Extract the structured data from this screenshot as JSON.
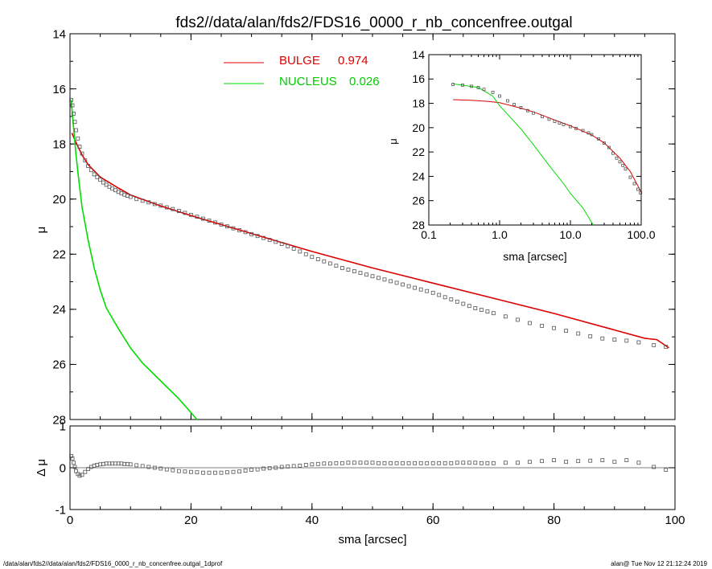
{
  "title": "fds2//data/alan/fds2/FDS16_0000_r_nb_concenfree.outgal",
  "footer_left": "/data/alan/fds2//data/alan/fds2/FDS16_0000_r_nb_concenfree.outgal_1dprof",
  "footer_right": "alan@  Tue Nov 12 21:12:24 2019",
  "colors": {
    "bulge": "#dd0000",
    "nucleus": "#00dd00",
    "data": "#555555",
    "axis": "#000000"
  },
  "chart_data": [
    {
      "id": "main",
      "type": "scatter",
      "xlabel": "",
      "ylabel": "μ",
      "xlim": [
        0,
        100
      ],
      "ylim": [
        28,
        14
      ],
      "xticks": [
        0,
        20,
        40,
        60,
        80,
        100
      ],
      "xticklabels": [
        "",
        "",
        "",
        "",
        "",
        ""
      ],
      "yticks": [
        14,
        16,
        18,
        20,
        22,
        24,
        26,
        28
      ],
      "yticklabels": [
        "14",
        "16",
        "18",
        "20",
        "22",
        "24",
        "26",
        "28"
      ],
      "legend": "top-center",
      "series": [
        {
          "name": "BULGE",
          "legend_value": "0.974",
          "kind": "line",
          "x": [
            0.3,
            1,
            2,
            3,
            5,
            8,
            10,
            15,
            20,
            30,
            40,
            50,
            60,
            70,
            80,
            90,
            95,
            97,
            99
          ],
          "y": [
            17.6,
            17.95,
            18.4,
            18.75,
            19.2,
            19.6,
            19.85,
            20.25,
            20.6,
            21.25,
            21.9,
            22.5,
            23.05,
            23.6,
            24.15,
            24.75,
            25.05,
            25.1,
            25.4
          ]
        },
        {
          "name": "NUCLEUS",
          "legend_value": "0.026",
          "kind": "line",
          "x": [
            0.2,
            0.5,
            1,
            1.5,
            2,
            3,
            4,
            5,
            6,
            8,
            10,
            12,
            15,
            18,
            21
          ],
          "y": [
            16.4,
            17.2,
            18.4,
            19.4,
            20.3,
            21.5,
            22.5,
            23.3,
            23.95,
            24.7,
            25.4,
            25.95,
            26.6,
            27.25,
            28.0
          ]
        },
        {
          "name": "",
          "kind": "markers",
          "x": [
            0.2,
            0.4,
            0.6,
            0.8,
            1,
            1.3,
            1.6,
            2,
            2.5,
            3,
            3.5,
            4,
            4.5,
            5,
            5.5,
            6,
            6.5,
            7,
            7.5,
            8,
            8.5,
            9,
            9.5,
            10,
            11,
            12,
            13,
            14,
            15,
            16,
            17,
            18,
            19,
            20,
            21,
            22,
            23,
            24,
            25,
            26,
            27,
            28,
            29,
            30,
            31,
            32,
            33,
            34,
            35,
            36,
            37,
            38,
            39,
            40,
            41,
            42,
            43,
            44,
            45,
            46,
            47,
            48,
            49,
            50,
            51,
            52,
            53,
            54,
            55,
            56,
            57,
            58,
            59,
            60,
            61,
            62,
            63,
            64,
            65,
            66,
            67,
            68,
            69,
            70,
            72,
            74,
            76,
            78,
            80,
            82,
            84,
            86,
            88,
            90,
            92,
            94,
            96.5,
            98.5
          ],
          "y": [
            16.4,
            16.6,
            16.9,
            17.2,
            17.5,
            17.8,
            18.1,
            18.35,
            18.6,
            18.8,
            18.95,
            19.1,
            19.2,
            19.3,
            19.4,
            19.48,
            19.55,
            19.62,
            19.68,
            19.74,
            19.79,
            19.84,
            19.88,
            19.92,
            20.0,
            20.06,
            20.12,
            20.18,
            20.24,
            20.3,
            20.36,
            20.43,
            20.5,
            20.57,
            20.64,
            20.71,
            20.78,
            20.85,
            20.92,
            20.99,
            21.06,
            21.13,
            21.2,
            21.27,
            21.34,
            21.41,
            21.48,
            21.55,
            21.63,
            21.71,
            21.8,
            21.9,
            22.0,
            22.1,
            22.18,
            22.26,
            22.34,
            22.42,
            22.5,
            22.56,
            22.62,
            22.68,
            22.74,
            22.8,
            22.86,
            22.92,
            22.98,
            23.04,
            23.1,
            23.16,
            23.22,
            23.28,
            23.34,
            23.4,
            23.48,
            23.56,
            23.64,
            23.72,
            23.8,
            23.88,
            23.96,
            24.02,
            24.08,
            24.14,
            24.26,
            24.38,
            24.5,
            24.6,
            24.68,
            24.78,
            24.88,
            24.98,
            25.06,
            25.1,
            25.14,
            25.2,
            25.3,
            25.36
          ]
        }
      ]
    },
    {
      "id": "inset",
      "type": "scatter",
      "xscale": "log",
      "xlabel": "sma [arcsec]",
      "ylabel": "μ",
      "xlim": [
        0.1,
        100
      ],
      "ylim": [
        28,
        14
      ],
      "xticks": [
        0.1,
        1,
        10,
        100
      ],
      "xticklabels": [
        "0.1",
        "1.0",
        "10.0",
        "100.0"
      ],
      "yticks": [
        14,
        16,
        18,
        20,
        22,
        24,
        26,
        28
      ],
      "yticklabels": [
        "14",
        "16",
        "18",
        "20",
        "22",
        "24",
        "26",
        "28"
      ],
      "series": [
        {
          "name": "BULGE",
          "kind": "line",
          "x": [
            0.22,
            0.4,
            0.7,
            1,
            2,
            3,
            5,
            10,
            20,
            30,
            50,
            70,
            100
          ],
          "y": [
            17.7,
            17.75,
            17.85,
            17.95,
            18.4,
            18.7,
            19.2,
            19.85,
            20.6,
            21.25,
            22.5,
            23.6,
            25.3
          ]
        },
        {
          "name": "NUCLEUS",
          "kind": "line",
          "x": [
            0.22,
            0.5,
            0.8,
            1,
            1.5,
            2,
            3,
            5,
            8,
            10,
            15,
            21
          ],
          "y": [
            16.4,
            16.7,
            17.4,
            18.2,
            19.3,
            20.1,
            21.4,
            23.1,
            24.6,
            25.4,
            26.6,
            28.0
          ]
        },
        {
          "name": "",
          "kind": "markers",
          "x": [
            0.22,
            0.3,
            0.4,
            0.5,
            0.6,
            0.8,
            1,
            1.3,
            1.6,
            2,
            2.5,
            3,
            4,
            5,
            6,
            7,
            8,
            10,
            12,
            15,
            18,
            20,
            25,
            30,
            35,
            40,
            45,
            50,
            55,
            60,
            70,
            80,
            90,
            98
          ],
          "y": [
            16.45,
            16.5,
            16.6,
            16.7,
            16.85,
            17.1,
            17.4,
            17.8,
            18.1,
            18.35,
            18.6,
            18.8,
            19.1,
            19.3,
            19.48,
            19.62,
            19.74,
            19.92,
            20.06,
            20.24,
            20.43,
            20.57,
            20.92,
            21.27,
            21.63,
            22.1,
            22.5,
            22.8,
            23.1,
            23.4,
            24.08,
            24.6,
            25.06,
            25.36
          ]
        }
      ]
    },
    {
      "id": "residual",
      "type": "scatter",
      "xlabel": "sma [arcsec]",
      "ylabel": "Δ μ",
      "xlim": [
        0,
        100
      ],
      "ylim": [
        -1,
        1
      ],
      "xticks": [
        0,
        20,
        40,
        60,
        80,
        100
      ],
      "xticklabels": [
        "0",
        "20",
        "40",
        "60",
        "80",
        "100"
      ],
      "yticks": [
        -1,
        0,
        1
      ],
      "yticklabels": [
        "-1",
        "0",
        "1"
      ],
      "series": [
        {
          "name": "",
          "kind": "markers",
          "x": [
            0.2,
            0.4,
            0.6,
            0.8,
            1,
            1.3,
            1.6,
            2,
            2.5,
            3,
            3.5,
            4,
            4.5,
            5,
            5.5,
            6,
            6.5,
            7,
            7.5,
            8,
            8.5,
            9,
            9.5,
            10,
            11,
            12,
            13,
            14,
            15,
            16,
            17,
            18,
            19,
            20,
            21,
            22,
            23,
            24,
            25,
            26,
            27,
            28,
            29,
            30,
            31,
            32,
            33,
            34,
            35,
            36,
            37,
            38,
            39,
            40,
            41,
            42,
            43,
            44,
            45,
            46,
            47,
            48,
            49,
            50,
            51,
            52,
            53,
            54,
            55,
            56,
            57,
            58,
            59,
            60,
            61,
            62,
            63,
            64,
            65,
            66,
            67,
            68,
            69,
            70,
            72,
            74,
            76,
            78,
            80,
            82,
            84,
            86,
            88,
            90,
            92,
            94,
            96.5,
            98.5
          ],
          "y": [
            0.28,
            0.22,
            0.12,
            0.02,
            -0.08,
            -0.15,
            -0.19,
            -0.17,
            -0.1,
            -0.03,
            0.02,
            0.05,
            0.07,
            0.08,
            0.09,
            0.1,
            0.1,
            0.1,
            0.1,
            0.1,
            0.1,
            0.09,
            0.09,
            0.08,
            0.06,
            0.04,
            0.02,
            0.0,
            -0.02,
            -0.04,
            -0.06,
            -0.08,
            -0.09,
            -0.1,
            -0.11,
            -0.12,
            -0.12,
            -0.12,
            -0.12,
            -0.11,
            -0.1,
            -0.09,
            -0.07,
            -0.05,
            -0.04,
            -0.02,
            -0.01,
            0.0,
            0.02,
            0.03,
            0.04,
            0.05,
            0.07,
            0.08,
            0.09,
            0.1,
            0.1,
            0.11,
            0.11,
            0.12,
            0.12,
            0.12,
            0.12,
            0.12,
            0.11,
            0.11,
            0.11,
            0.11,
            0.11,
            0.11,
            0.11,
            0.11,
            0.11,
            0.11,
            0.11,
            0.11,
            0.11,
            0.12,
            0.12,
            0.12,
            0.12,
            0.11,
            0.11,
            0.11,
            0.12,
            0.12,
            0.14,
            0.16,
            0.18,
            0.14,
            0.16,
            0.17,
            0.18,
            0.14,
            0.18,
            0.12,
            0.02,
            -0.05
          ]
        }
      ]
    }
  ]
}
